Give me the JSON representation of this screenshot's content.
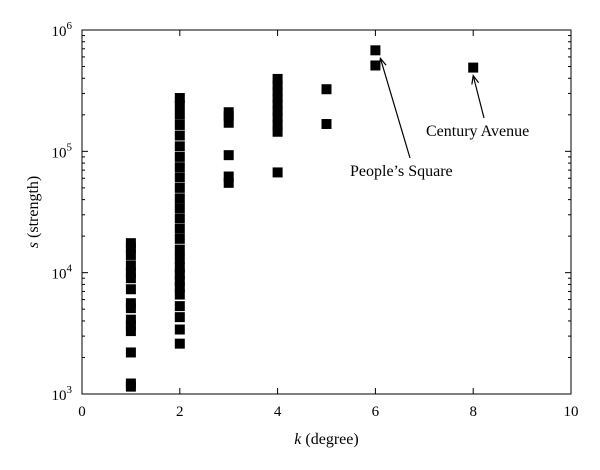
{
  "chart_data": {
    "type": "scatter",
    "title": "",
    "xlabel_var": "k",
    "xlabel_rest": " (degree)",
    "ylabel_var": "s",
    "ylabel_rest": " (strength)",
    "xlim": [
      0,
      10
    ],
    "ylim": [
      1000,
      1000000
    ],
    "y_scale": "log",
    "grid": false,
    "x_ticks": [
      0,
      2,
      4,
      6,
      8,
      10
    ],
    "x_tick_labels": [
      "0",
      "2",
      "4",
      "6",
      "8",
      "10"
    ],
    "y_ticks": [
      1000,
      10000,
      100000,
      1000000
    ],
    "y_tick_labels": [
      {
        "base": "10",
        "exp": "3"
      },
      {
        "base": "10",
        "exp": "4"
      },
      {
        "base": "10",
        "exp": "5"
      },
      {
        "base": "10",
        "exp": "6"
      }
    ],
    "marker_color": "#000000",
    "series": [
      {
        "points": [
          {
            "x": 1,
            "y": 1150
          },
          {
            "x": 1,
            "y": 1220
          },
          {
            "x": 1,
            "y": 2200
          },
          {
            "x": 1,
            "y": 3300
          },
          {
            "x": 1,
            "y": 3700
          },
          {
            "x": 1,
            "y": 4100
          },
          {
            "x": 1,
            "y": 5100
          },
          {
            "x": 1,
            "y": 5600
          },
          {
            "x": 1,
            "y": 7300
          },
          {
            "x": 1,
            "y": 9000
          },
          {
            "x": 1,
            "y": 10000
          },
          {
            "x": 1,
            "y": 11500
          },
          {
            "x": 1,
            "y": 14000
          },
          {
            "x": 1,
            "y": 16000
          },
          {
            "x": 1,
            "y": 17500
          },
          {
            "x": 2,
            "y": 2600
          },
          {
            "x": 2,
            "y": 3400
          },
          {
            "x": 2,
            "y": 4300
          },
          {
            "x": 2,
            "y": 5300
          },
          {
            "x": 2,
            "y": 6600
          },
          {
            "x": 2,
            "y": 7600
          },
          {
            "x": 2,
            "y": 8600
          },
          {
            "x": 2,
            "y": 9700
          },
          {
            "x": 2,
            "y": 11000
          },
          {
            "x": 2,
            "y": 13000
          },
          {
            "x": 2,
            "y": 15500
          },
          {
            "x": 2,
            "y": 19000
          },
          {
            "x": 2,
            "y": 23000
          },
          {
            "x": 2,
            "y": 28000
          },
          {
            "x": 2,
            "y": 34000
          },
          {
            "x": 2,
            "y": 41000
          },
          {
            "x": 2,
            "y": 50000
          },
          {
            "x": 2,
            "y": 61000
          },
          {
            "x": 2,
            "y": 74000
          },
          {
            "x": 2,
            "y": 90000
          },
          {
            "x": 2,
            "y": 110000
          },
          {
            "x": 2,
            "y": 135000
          },
          {
            "x": 2,
            "y": 165000
          },
          {
            "x": 2,
            "y": 200000
          },
          {
            "x": 2,
            "y": 240000
          },
          {
            "x": 2,
            "y": 275000
          },
          {
            "x": 3,
            "y": 55000
          },
          {
            "x": 3,
            "y": 62000
          },
          {
            "x": 3,
            "y": 93000
          },
          {
            "x": 3,
            "y": 172000
          },
          {
            "x": 3,
            "y": 195000
          },
          {
            "x": 3,
            "y": 210000
          },
          {
            "x": 4,
            "y": 67000
          },
          {
            "x": 4,
            "y": 145000
          },
          {
            "x": 4,
            "y": 165000
          },
          {
            "x": 4,
            "y": 190000
          },
          {
            "x": 4,
            "y": 215000
          },
          {
            "x": 4,
            "y": 245000
          },
          {
            "x": 4,
            "y": 275000
          },
          {
            "x": 4,
            "y": 310000
          },
          {
            "x": 4,
            "y": 350000
          },
          {
            "x": 4,
            "y": 395000
          },
          {
            "x": 5,
            "y": 168000
          },
          {
            "x": 5,
            "y": 325000
          },
          {
            "x": 6,
            "y": 510000
          },
          {
            "x": 6,
            "y": 680000
          },
          {
            "x": 8,
            "y": 490000
          }
        ]
      }
    ],
    "annotations": [
      {
        "text": "People’s Square",
        "point": {
          "x": 6,
          "y": 680000
        }
      },
      {
        "text": "Century Avenue",
        "point": {
          "x": 8,
          "y": 490000
        }
      }
    ]
  }
}
